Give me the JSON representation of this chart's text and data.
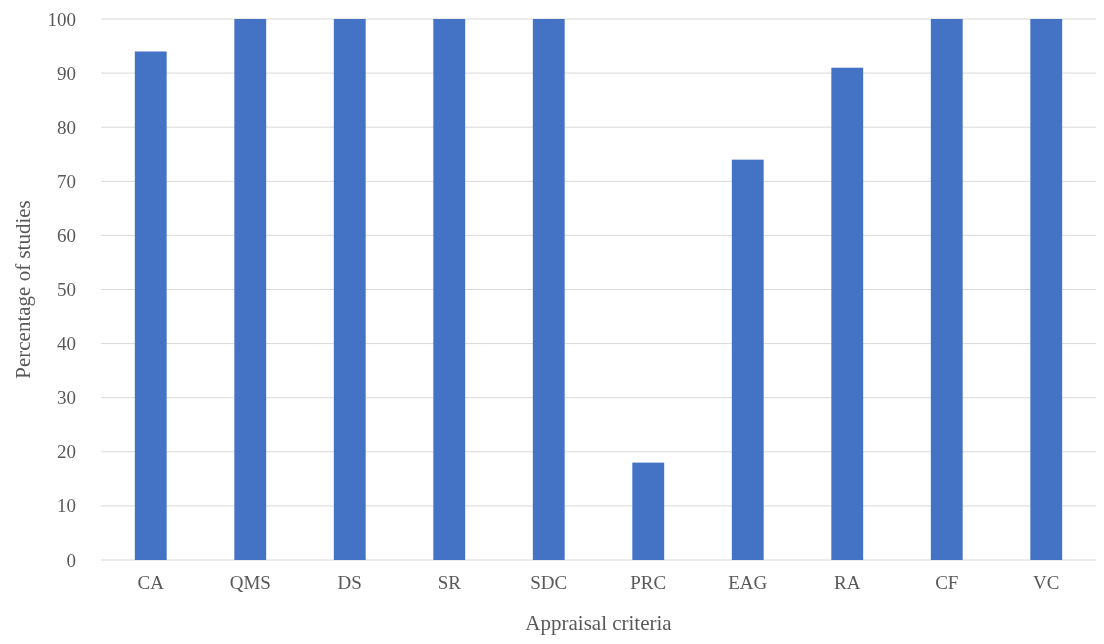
{
  "chart_data": {
    "type": "bar",
    "xlabel": "Appraisal criteria",
    "ylabel": "Percentage of studies",
    "categories": [
      "CA",
      "QMS",
      "DS",
      "SR",
      "SDC",
      "PRC",
      "EAG",
      "RA",
      "CF",
      "VC"
    ],
    "values": [
      94,
      100,
      100,
      100,
      100,
      18,
      74,
      91,
      100,
      100
    ],
    "color": "#4472c4",
    "ylim": [
      0,
      100
    ],
    "yticks": [
      0,
      10,
      20,
      30,
      40,
      50,
      60,
      70,
      80,
      90,
      100
    ],
    "grid": "y"
  }
}
